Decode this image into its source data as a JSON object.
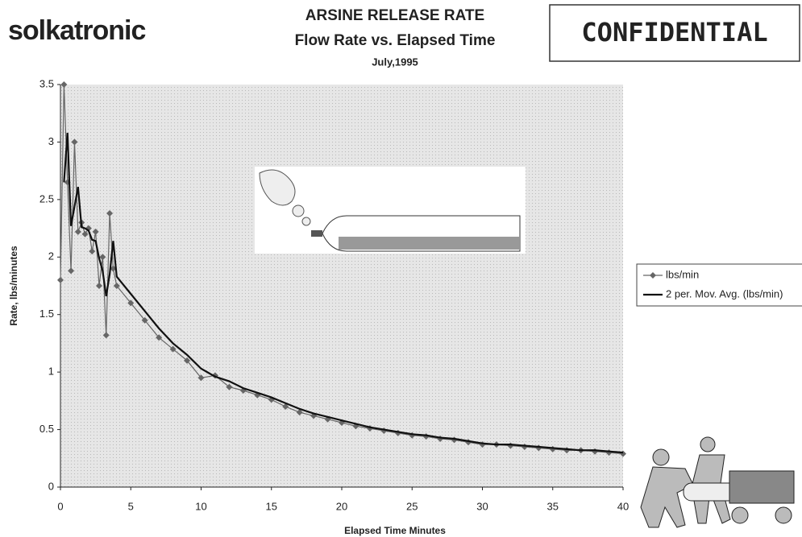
{
  "chart_data": {
    "type": "line",
    "title": "ARSINE RELEASE RATE",
    "subtitle": "Flow Rate vs. Elapsed Time",
    "annotations": [
      "July,1995",
      "solkatronic",
      "CONFIDENTIAL"
    ],
    "x_label": "Elapsed Time Minutes",
    "y_label": "Rate, lbs/minutes",
    "x": [
      0,
      0.25,
      0.5,
      0.75,
      1,
      1.25,
      1.5,
      1.75,
      2,
      2.25,
      2.5,
      2.75,
      3,
      3.25,
      3.5,
      3.75,
      4,
      5,
      6,
      7,
      8,
      9,
      10,
      11,
      12,
      13,
      14,
      15,
      16,
      17,
      18,
      19,
      20,
      21,
      22,
      23,
      24,
      25,
      26,
      27,
      28,
      29,
      30,
      31,
      32,
      33,
      34,
      35,
      36,
      37,
      38,
      39,
      40
    ],
    "series": [
      {
        "name": "lbs/min",
        "color": "#666666",
        "marker": "diamond",
        "values": [
          1.8,
          3.5,
          2.65,
          1.88,
          3.0,
          2.22,
          2.3,
          2.2,
          2.25,
          2.05,
          2.22,
          1.75,
          2.0,
          1.32,
          2.38,
          1.9,
          1.75,
          1.6,
          1.45,
          1.3,
          1.2,
          1.1,
          0.95,
          0.97,
          0.87,
          0.84,
          0.8,
          0.76,
          0.7,
          0.65,
          0.62,
          0.59,
          0.56,
          0.53,
          0.51,
          0.49,
          0.47,
          0.45,
          0.44,
          0.42,
          0.41,
          0.39,
          0.37,
          0.37,
          0.36,
          0.35,
          0.34,
          0.33,
          0.32,
          0.32,
          0.31,
          0.3,
          0.29
        ]
      },
      {
        "name": "2 per. Mov. Avg. (lbs/min)",
        "color": "#111111",
        "values": [
          null,
          2.65,
          3.08,
          2.27,
          2.44,
          2.61,
          2.26,
          2.25,
          2.23,
          2.15,
          2.14,
          1.99,
          1.88,
          1.66,
          1.85,
          2.14,
          1.83,
          1.68,
          1.53,
          1.38,
          1.25,
          1.15,
          1.03,
          0.96,
          0.92,
          0.86,
          0.82,
          0.78,
          0.73,
          0.68,
          0.64,
          0.61,
          0.58,
          0.55,
          0.52,
          0.5,
          0.48,
          0.46,
          0.45,
          0.43,
          0.42,
          0.4,
          0.38,
          0.37,
          0.37,
          0.36,
          0.35,
          0.34,
          0.33,
          0.32,
          0.32,
          0.31,
          0.3
        ]
      }
    ],
    "xlim": [
      0,
      40
    ],
    "xticks": [
      0,
      5,
      10,
      15,
      20,
      25,
      30,
      35,
      40
    ],
    "ylim": [
      0,
      3.5
    ],
    "yticks": [
      0,
      0.5,
      1,
      1.5,
      2,
      2.5,
      3,
      3.5
    ],
    "grid": false,
    "legend": "right"
  }
}
